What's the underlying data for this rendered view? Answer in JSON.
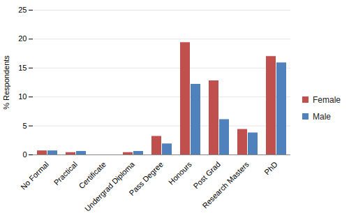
{
  "chart_data": {
    "type": "bar",
    "categories": [
      "No Formal",
      "Practical",
      "Certificate",
      "Undergrad Diploma",
      "Pass Degree",
      "Honours",
      "Post Grad",
      "Research Masters",
      "PhD"
    ],
    "series": [
      {
        "name": "Female",
        "color": "#C0504D",
        "values": [
          0.7,
          0.4,
          0,
          0.4,
          3.2,
          19.4,
          12.8,
          4.4,
          17.0
        ]
      },
      {
        "name": "Male",
        "color": "#4F81BD",
        "values": [
          0.7,
          0.6,
          0,
          0.6,
          1.9,
          12.2,
          6.1,
          3.8,
          15.9
        ]
      }
    ],
    "y_label": "% Respondents",
    "ylim": [
      0,
      25
    ],
    "yticks": [
      0,
      5,
      10,
      15,
      20,
      25
    ],
    "grid": true,
    "legend": "right"
  }
}
